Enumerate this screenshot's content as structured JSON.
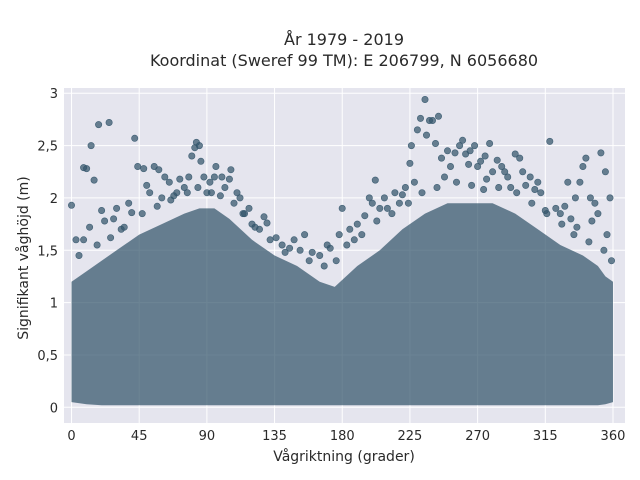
{
  "chart_data": {
    "type": "scatter",
    "title": "År 1979 - 2019",
    "subtitle": "Koordinat (Sweref 99 TM): E 206799, N 6056680",
    "xlabel": "Vågriktning (grader)",
    "ylabel": "Signifikant våghöjd (m)",
    "xlim": [
      -5,
      368
    ],
    "ylim": [
      -0.15,
      3.05
    ],
    "x_ticks": [
      0,
      45,
      90,
      135,
      180,
      225,
      270,
      315,
      360
    ],
    "x_tick_labels": [
      "0",
      "45",
      "90",
      "135",
      "180",
      "225",
      "270",
      "315",
      "360"
    ],
    "y_ticks": [
      0,
      0.5,
      1,
      1.5,
      2,
      2.5,
      3
    ],
    "y_tick_labels": [
      "0",
      "0,5",
      "1",
      "1,5",
      "2",
      "2,5",
      "3"
    ],
    "grid": true,
    "marker_color": "#33556b",
    "background_color": "#e5e5ee",
    "envelope": {
      "x": [
        0,
        10,
        20,
        30,
        45,
        60,
        75,
        85,
        95,
        105,
        120,
        135,
        150,
        165,
        175,
        190,
        205,
        220,
        235,
        250,
        265,
        280,
        295,
        310,
        325,
        340,
        350,
        355,
        360
      ],
      "upper": [
        1.2,
        1.3,
        1.4,
        1.5,
        1.65,
        1.75,
        1.85,
        1.9,
        1.9,
        1.8,
        1.6,
        1.45,
        1.35,
        1.2,
        1.15,
        1.35,
        1.5,
        1.7,
        1.85,
        1.95,
        1.95,
        1.95,
        1.85,
        1.7,
        1.55,
        1.45,
        1.35,
        1.25,
        1.2
      ],
      "lower": [
        0.05,
        0.03,
        0.02,
        0.02,
        0.02,
        0.02,
        0.02,
        0.02,
        0.02,
        0.02,
        0.02,
        0.02,
        0.02,
        0.02,
        0.02,
        0.02,
        0.02,
        0.02,
        0.02,
        0.02,
        0.02,
        0.02,
        0.02,
        0.02,
        0.02,
        0.02,
        0.02,
        0.03,
        0.05
      ]
    },
    "points": [
      [
        0,
        1.93
      ],
      [
        3,
        1.6
      ],
      [
        8,
        2.29
      ],
      [
        10,
        2.28
      ],
      [
        13,
        2.5
      ],
      [
        15,
        2.17
      ],
      [
        18,
        2.7
      ],
      [
        25,
        2.72
      ],
      [
        20,
        1.88
      ],
      [
        28,
        1.8
      ],
      [
        35,
        1.72
      ],
      [
        42,
        2.57
      ],
      [
        44,
        2.3
      ],
      [
        48,
        2.28
      ],
      [
        50,
        2.12
      ],
      [
        52,
        2.05
      ],
      [
        55,
        2.3
      ],
      [
        58,
        2.27
      ],
      [
        40,
        1.86
      ],
      [
        60,
        2.0
      ],
      [
        65,
        2.15
      ],
      [
        70,
        2.05
      ],
      [
        75,
        2.1
      ],
      [
        78,
        2.2
      ],
      [
        80,
        2.4
      ],
      [
        82,
        2.48
      ],
      [
        83,
        2.53
      ],
      [
        85,
        2.5
      ],
      [
        86,
        2.35
      ],
      [
        88,
        2.2
      ],
      [
        90,
        2.05
      ],
      [
        92,
        2.15
      ],
      [
        95,
        2.2
      ],
      [
        100,
        2.2
      ],
      [
        105,
        2.18
      ],
      [
        106,
        2.27
      ],
      [
        110,
        2.05
      ],
      [
        115,
        1.85
      ],
      [
        120,
        1.75
      ],
      [
        125,
        1.7
      ],
      [
        130,
        1.76
      ],
      [
        140,
        1.55
      ],
      [
        148,
        1.6
      ],
      [
        155,
        1.65
      ],
      [
        160,
        1.48
      ],
      [
        165,
        1.45
      ],
      [
        170,
        1.55
      ],
      [
        178,
        1.65
      ],
      [
        180,
        1.9
      ],
      [
        185,
        1.7
      ],
      [
        190,
        1.75
      ],
      [
        195,
        1.83
      ],
      [
        198,
        2.0
      ],
      [
        200,
        1.95
      ],
      [
        202,
        2.17
      ],
      [
        205,
        1.9
      ],
      [
        210,
        1.9
      ],
      [
        215,
        2.05
      ],
      [
        220,
        2.03
      ],
      [
        222,
        2.1
      ],
      [
        225,
        2.33
      ],
      [
        226,
        2.5
      ],
      [
        230,
        2.65
      ],
      [
        232,
        2.76
      ],
      [
        235,
        2.94
      ],
      [
        236,
        2.6
      ],
      [
        238,
        2.74
      ],
      [
        240,
        2.74
      ],
      [
        242,
        2.52
      ],
      [
        244,
        2.78
      ],
      [
        246,
        2.38
      ],
      [
        250,
        2.45
      ],
      [
        255,
        2.43
      ],
      [
        258,
        2.5
      ],
      [
        260,
        2.55
      ],
      [
        262,
        2.42
      ],
      [
        265,
        2.45
      ],
      [
        268,
        2.5
      ],
      [
        270,
        2.3
      ],
      [
        272,
        2.35
      ],
      [
        275,
        2.4
      ],
      [
        278,
        2.52
      ],
      [
        280,
        2.25
      ],
      [
        283,
        2.36
      ],
      [
        286,
        2.3
      ],
      [
        290,
        2.2
      ],
      [
        292,
        2.1
      ],
      [
        295,
        2.42
      ],
      [
        298,
        2.38
      ],
      [
        300,
        2.25
      ],
      [
        305,
        2.2
      ],
      [
        310,
        2.15
      ],
      [
        312,
        2.05
      ],
      [
        315,
        1.88
      ],
      [
        318,
        2.54
      ],
      [
        322,
        1.9
      ],
      [
        325,
        1.85
      ],
      [
        330,
        2.15
      ],
      [
        335,
        2.0
      ],
      [
        338,
        2.15
      ],
      [
        340,
        2.3
      ],
      [
        342,
        2.38
      ],
      [
        345,
        2.0
      ],
      [
        348,
        1.95
      ],
      [
        350,
        1.85
      ],
      [
        352,
        2.43
      ],
      [
        355,
        2.25
      ],
      [
        358,
        2.0
      ],
      [
        8,
        1.6
      ],
      [
        12,
        1.72
      ],
      [
        22,
        1.78
      ],
      [
        30,
        1.9
      ],
      [
        38,
        1.95
      ],
      [
        62,
        2.2
      ],
      [
        68,
        2.02
      ],
      [
        72,
        2.18
      ],
      [
        96,
        2.3
      ],
      [
        102,
        2.1
      ],
      [
        112,
        2.0
      ],
      [
        118,
        1.9
      ],
      [
        128,
        1.82
      ],
      [
        136,
        1.62
      ],
      [
        145,
        1.52
      ],
      [
        152,
        1.5
      ],
      [
        172,
        1.52
      ],
      [
        188,
        1.6
      ],
      [
        208,
        2.0
      ],
      [
        218,
        1.95
      ],
      [
        228,
        2.15
      ],
      [
        248,
        2.2
      ],
      [
        252,
        2.3
      ],
      [
        264,
        2.32
      ],
      [
        276,
        2.18
      ],
      [
        288,
        2.25
      ],
      [
        302,
        2.12
      ],
      [
        308,
        2.08
      ],
      [
        328,
        1.92
      ],
      [
        332,
        1.8
      ],
      [
        336,
        1.72
      ],
      [
        346,
        1.78
      ],
      [
        356,
        1.65
      ],
      [
        5,
        1.45
      ],
      [
        17,
        1.55
      ],
      [
        26,
        1.62
      ],
      [
        33,
        1.7
      ],
      [
        47,
        1.85
      ],
      [
        57,
        1.92
      ],
      [
        66,
        1.98
      ],
      [
        77,
        2.05
      ],
      [
        84,
        2.1
      ],
      [
        93,
        2.05
      ],
      [
        99,
        2.02
      ],
      [
        108,
        1.95
      ],
      [
        114,
        1.85
      ],
      [
        122,
        1.72
      ],
      [
        132,
        1.6
      ],
      [
        142,
        1.48
      ],
      [
        158,
        1.4
      ],
      [
        168,
        1.35
      ],
      [
        176,
        1.4
      ],
      [
        183,
        1.55
      ],
      [
        193,
        1.65
      ],
      [
        203,
        1.78
      ],
      [
        213,
        1.85
      ],
      [
        224,
        1.95
      ],
      [
        233,
        2.05
      ],
      [
        243,
        2.1
      ],
      [
        256,
        2.15
      ],
      [
        266,
        2.12
      ],
      [
        274,
        2.08
      ],
      [
        284,
        2.1
      ],
      [
        296,
        2.05
      ],
      [
        306,
        1.95
      ],
      [
        316,
        1.85
      ],
      [
        326,
        1.75
      ],
      [
        334,
        1.65
      ],
      [
        344,
        1.58
      ],
      [
        354,
        1.5
      ],
      [
        359,
        1.4
      ]
    ]
  }
}
